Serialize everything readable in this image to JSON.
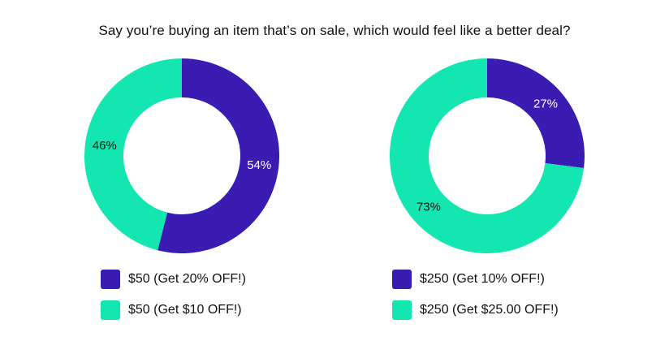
{
  "title": "Say you’re buying an item that’s on sale, which would feel like a better deal?",
  "colors": {
    "purple": "#3a1cb3",
    "teal": "#14e6b1"
  },
  "chart_data": [
    {
      "type": "pie",
      "donut": true,
      "slices": [
        {
          "label": "$50 (Get 20% OFF!)",
          "value": 54,
          "display": "54%",
          "color": "#3a1cb3",
          "text_color": "#ffffff"
        },
        {
          "label": "$50 (Get $10 OFF!)",
          "value": 46,
          "display": "46%",
          "color": "#14e6b1",
          "text_color": "#111111"
        }
      ],
      "legend_placement": "bottom"
    },
    {
      "type": "pie",
      "donut": true,
      "slices": [
        {
          "label": "$250 (Get 10% OFF!)",
          "value": 27,
          "display": "27%",
          "color": "#3a1cb3",
          "text_color": "#ffffff"
        },
        {
          "label": "$250 (Get $25.00 OFF!)",
          "value": 73,
          "display": "73%",
          "color": "#14e6b1",
          "text_color": "#111111"
        }
      ],
      "legend_placement": "bottom"
    }
  ]
}
